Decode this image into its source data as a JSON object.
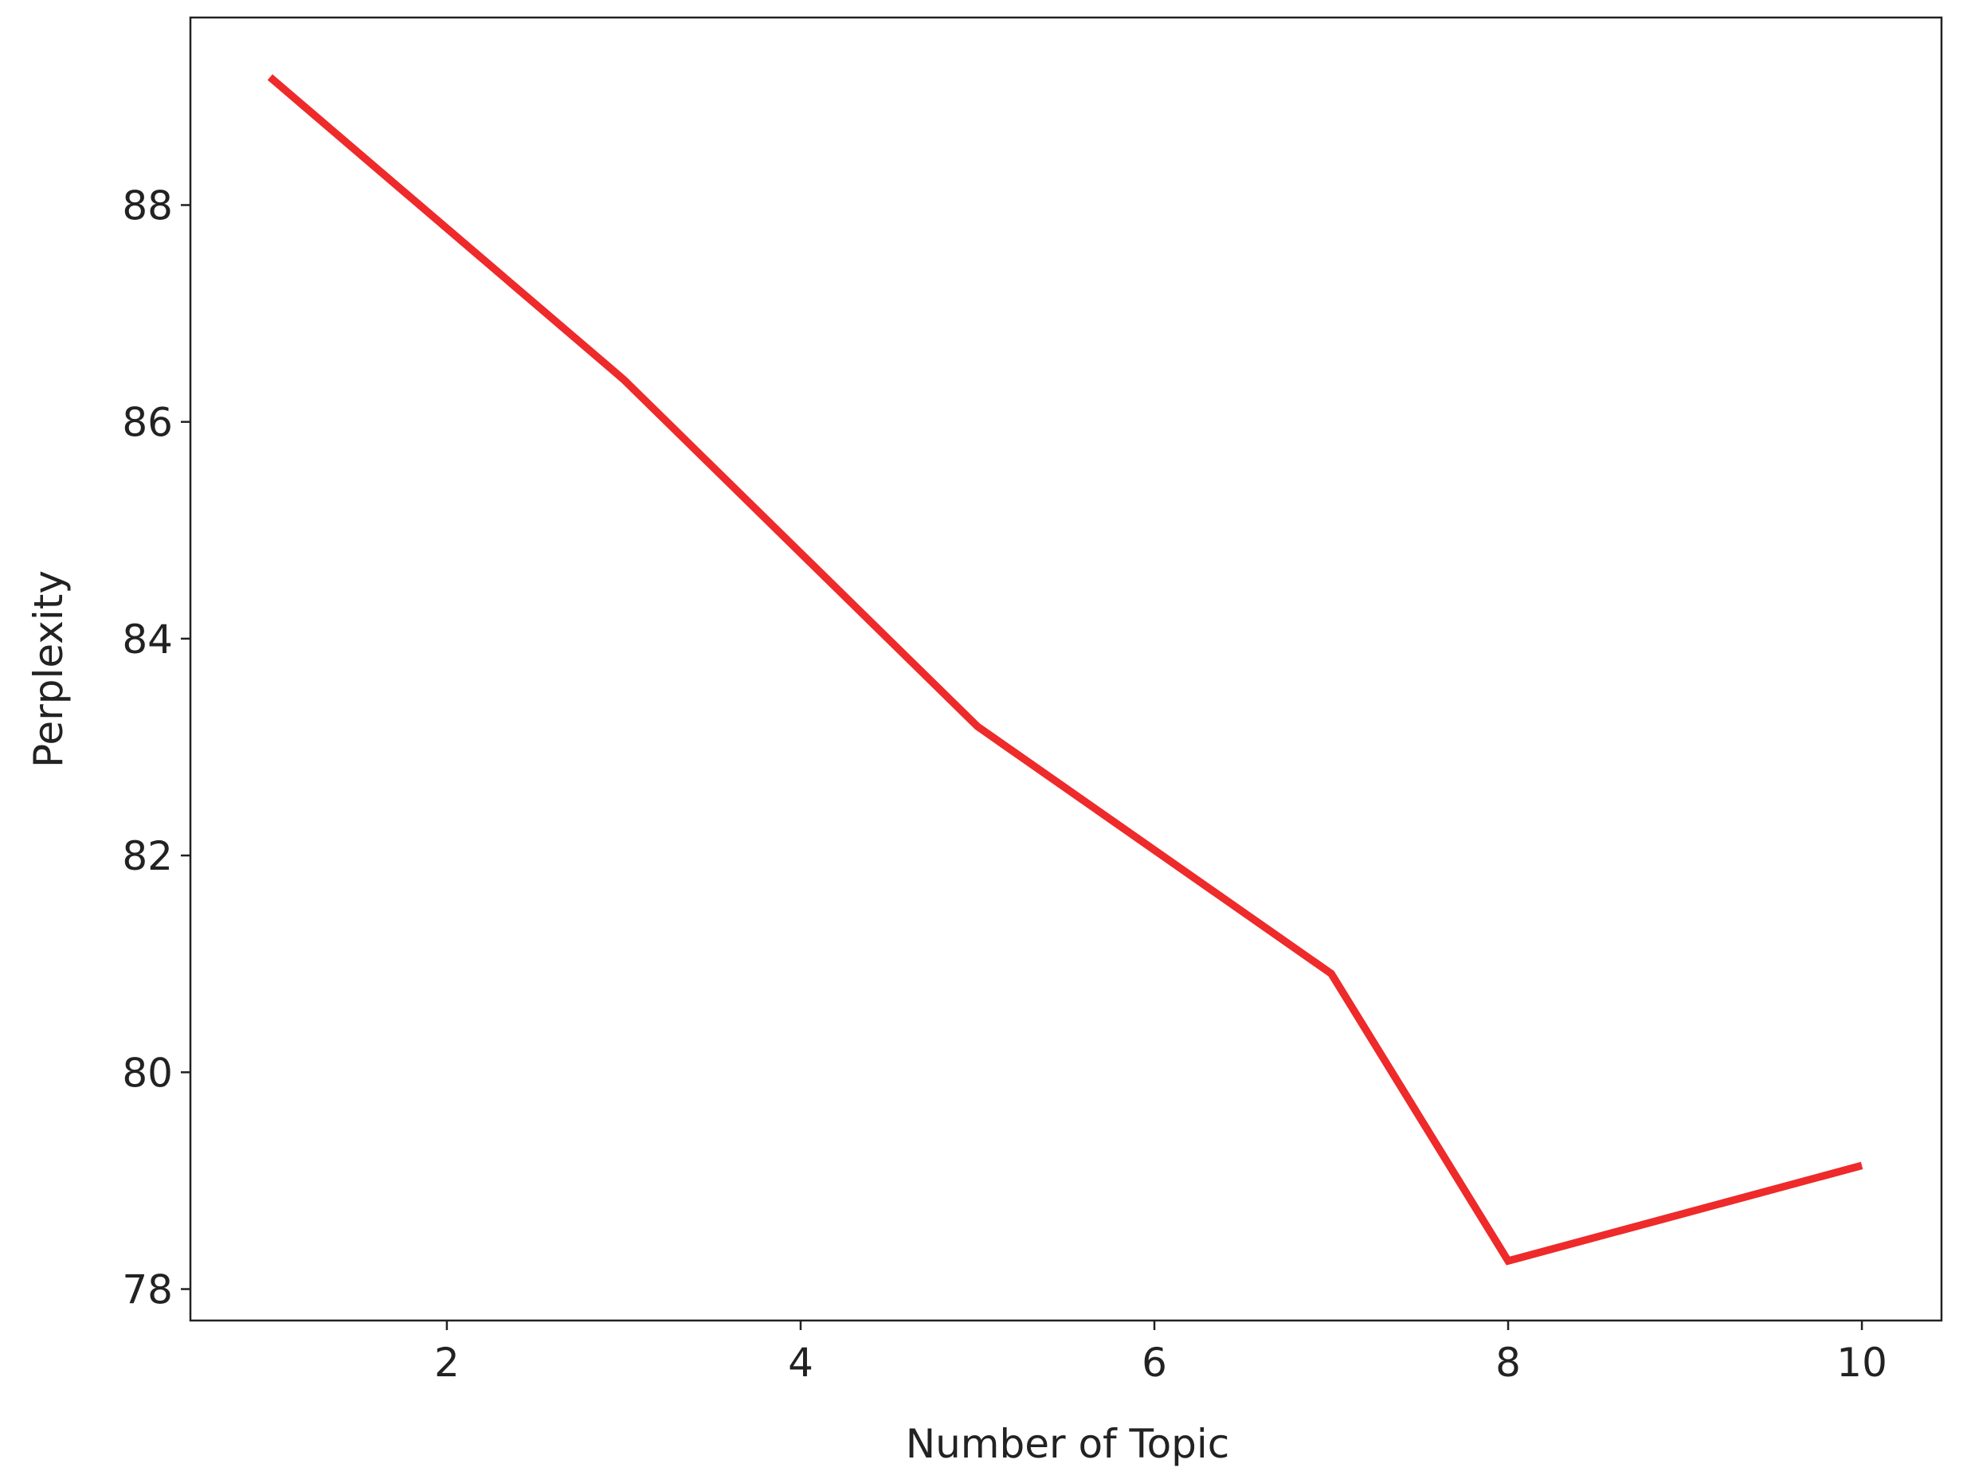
{
  "chart_data": {
    "type": "line",
    "x_label": "Number of Topic",
    "y_label": "Perplexity",
    "x": [
      1,
      3,
      5,
      7,
      8,
      10
    ],
    "series": [
      {
        "color": "#ee2a2a",
        "values": [
          89.18,
          86.39,
          83.19,
          80.91,
          78.26,
          79.14
        ]
      }
    ],
    "xlim": [
      0.55,
      10.45
    ],
    "ylim": [
      77.71,
      89.73
    ],
    "xticks": [
      2,
      4,
      6,
      8,
      10
    ],
    "yticks": [
      78,
      80,
      82,
      84,
      86,
      88
    ],
    "grid": false
  }
}
